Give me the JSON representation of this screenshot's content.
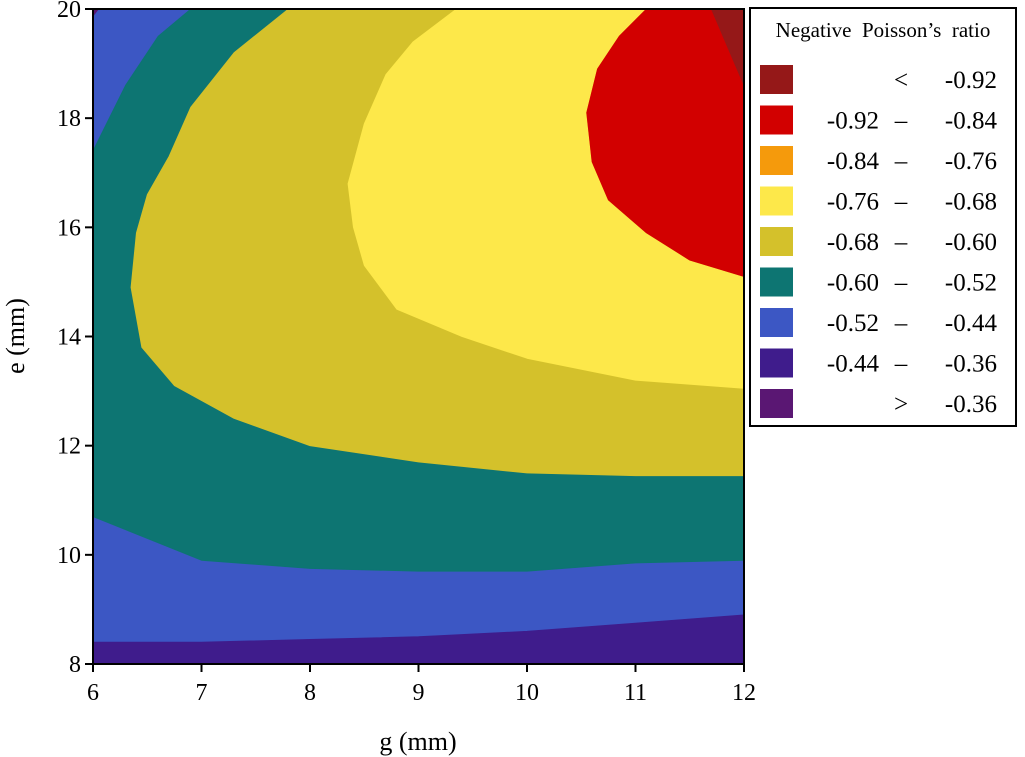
{
  "chart_data": {
    "type": "contour",
    "xlabel": "g (mm)",
    "ylabel": "e (mm)",
    "xlim": [
      6,
      12
    ],
    "ylim": [
      8,
      20
    ],
    "x_ticks": [
      "6",
      "7",
      "8",
      "9",
      "10",
      "11",
      "12"
    ],
    "y_ticks": [
      "8",
      "10",
      "12",
      "14",
      "16",
      "18",
      "20"
    ],
    "legend": {
      "title": "Negative  Poisson’s  ratio",
      "placement": "right",
      "entries": [
        {
          "low": "",
          "sep": "<",
          "high": "-0.92",
          "color": "#951818"
        },
        {
          "low": "-0.92",
          "sep": "–",
          "high": "-0.84",
          "color": "#d20000"
        },
        {
          "low": "-0.84",
          "sep": "–",
          "high": "-0.76",
          "color": "#f59a0c"
        },
        {
          "low": "-0.76",
          "sep": "–",
          "high": "-0.68",
          "color": "#fde84a"
        },
        {
          "low": "-0.68",
          "sep": "–",
          "high": "-0.60",
          "color": "#d4c12b"
        },
        {
          "low": "-0.60",
          "sep": "–",
          "high": "-0.52",
          "color": "#0d7572"
        },
        {
          "low": "-0.52",
          "sep": "–",
          "high": "-0.44",
          "color": "#3c57c4"
        },
        {
          "low": "-0.44",
          "sep": "–",
          "high": "-0.36",
          "color": "#3f1c8c"
        },
        {
          "low": "",
          "sep": ">",
          "high": "-0.36",
          "color": "#5a1773"
        }
      ]
    },
    "regions": [
      {
        "level": "> -0.36",
        "color": "#5a1773",
        "points": [
          [
            6,
            20
          ],
          [
            6.06,
            20
          ],
          [
            6,
            19.85
          ]
        ]
      },
      {
        "level": "-0.52 – -0.44",
        "color": "#3c57c4",
        "points": [
          [
            6,
            19.85
          ],
          [
            6.06,
            20
          ],
          [
            6.9,
            20
          ],
          [
            6.6,
            19.5
          ],
          [
            6.3,
            18.6
          ],
          [
            6,
            17.4
          ]
        ]
      },
      {
        "level": "-0.60 – -0.52",
        "color": "#0d7572",
        "points": [
          [
            6,
            17.4
          ],
          [
            6.3,
            18.6
          ],
          [
            6.6,
            19.5
          ],
          [
            6.9,
            20
          ],
          [
            7.8,
            20
          ],
          [
            7.3,
            19.2
          ],
          [
            6.9,
            18.2
          ],
          [
            6.7,
            17.3
          ],
          [
            6.5,
            16.6
          ],
          [
            6.4,
            15.9
          ],
          [
            6.35,
            14.9
          ],
          [
            6.45,
            13.8
          ],
          [
            6.75,
            13.1
          ],
          [
            7.3,
            12.5
          ],
          [
            8,
            12.0
          ],
          [
            9,
            11.7
          ],
          [
            10,
            11.5
          ],
          [
            11,
            11.45
          ],
          [
            12,
            11.45
          ],
          [
            12,
            9.9
          ],
          [
            11,
            9.85
          ],
          [
            10,
            9.7
          ],
          [
            9,
            9.7
          ],
          [
            8,
            9.75
          ],
          [
            7,
            9.9
          ],
          [
            6,
            10.7
          ]
        ]
      },
      {
        "level": "-0.68 – -0.60",
        "color": "#d4c12b",
        "points": [
          [
            7.8,
            20
          ],
          [
            9.35,
            20
          ],
          [
            8.95,
            19.4
          ],
          [
            8.7,
            18.8
          ],
          [
            8.5,
            17.9
          ],
          [
            8.35,
            16.8
          ],
          [
            8.4,
            16
          ],
          [
            8.5,
            15.3
          ],
          [
            8.8,
            14.5
          ],
          [
            9.4,
            14
          ],
          [
            10,
            13.6
          ],
          [
            11,
            13.2
          ],
          [
            12,
            13.05
          ],
          [
            12,
            11.45
          ],
          [
            11,
            11.45
          ],
          [
            10,
            11.5
          ],
          [
            9,
            11.7
          ],
          [
            8,
            12.0
          ],
          [
            7.3,
            12.5
          ],
          [
            6.75,
            13.1
          ],
          [
            6.45,
            13.8
          ],
          [
            6.35,
            14.9
          ],
          [
            6.4,
            15.9
          ],
          [
            6.5,
            16.6
          ],
          [
            6.7,
            17.3
          ],
          [
            6.9,
            18.2
          ],
          [
            7.3,
            19.2
          ]
        ]
      },
      {
        "level": "-0.76 – -0.68",
        "color": "#fde84a",
        "points": [
          [
            9.35,
            20
          ],
          [
            11.1,
            20
          ],
          [
            10.85,
            19.5
          ],
          [
            10.65,
            18.9
          ],
          [
            10.55,
            18.1
          ],
          [
            10.6,
            17.2
          ],
          [
            10.75,
            16.5
          ],
          [
            11.1,
            15.9
          ],
          [
            11.5,
            15.4
          ],
          [
            12,
            15.1
          ],
          [
            12,
            13.05
          ],
          [
            11,
            13.2
          ],
          [
            10,
            13.6
          ],
          [
            9.4,
            14
          ],
          [
            8.8,
            14.5
          ],
          [
            8.5,
            15.3
          ],
          [
            8.4,
            16
          ],
          [
            8.35,
            16.8
          ],
          [
            8.5,
            17.9
          ],
          [
            8.7,
            18.8
          ],
          [
            8.95,
            19.4
          ]
        ]
      },
      {
        "level": "-0.84 – -0.76",
        "color": "#f59a0c",
        "points": [
          [
            11.1,
            20
          ],
          [
            12,
            20
          ],
          [
            12,
            15.1
          ],
          [
            11.5,
            15.4
          ],
          [
            11.1,
            15.9
          ],
          [
            10.75,
            16.5
          ],
          [
            10.6,
            17.2
          ],
          [
            10.55,
            18.1
          ],
          [
            10.65,
            18.9
          ],
          [
            10.85,
            19.5
          ]
        ]
      },
      {
        "level": "-0.92 – -0.84",
        "color": "#d20000",
        "points": [
          [
            11.1,
            20
          ],
          [
            11.7,
            20
          ],
          [
            11.85,
            19.3
          ],
          [
            12,
            18.6
          ],
          [
            12,
            15.1
          ],
          [
            11.5,
            15.4
          ],
          [
            11.1,
            15.9
          ],
          [
            10.75,
            16.5
          ],
          [
            10.6,
            17.2
          ],
          [
            10.55,
            18.1
          ],
          [
            10.65,
            18.9
          ],
          [
            10.85,
            19.5
          ]
        ]
      },
      {
        "level": "< -0.92",
        "color": "#951818",
        "points": [
          [
            11.7,
            20
          ],
          [
            12,
            20
          ],
          [
            12,
            18.6
          ],
          [
            11.85,
            19.3
          ]
        ]
      },
      {
        "level": "-0.44 – -0.36",
        "color": "#3f1c8c",
        "points": [
          [
            6,
            8
          ],
          [
            12,
            8
          ],
          [
            12,
            8.9
          ],
          [
            11,
            8.75
          ],
          [
            10,
            8.6
          ],
          [
            9,
            8.5
          ],
          [
            8,
            8.45
          ],
          [
            7,
            8.4
          ],
          [
            6,
            8.4
          ]
        ]
      }
    ]
  }
}
